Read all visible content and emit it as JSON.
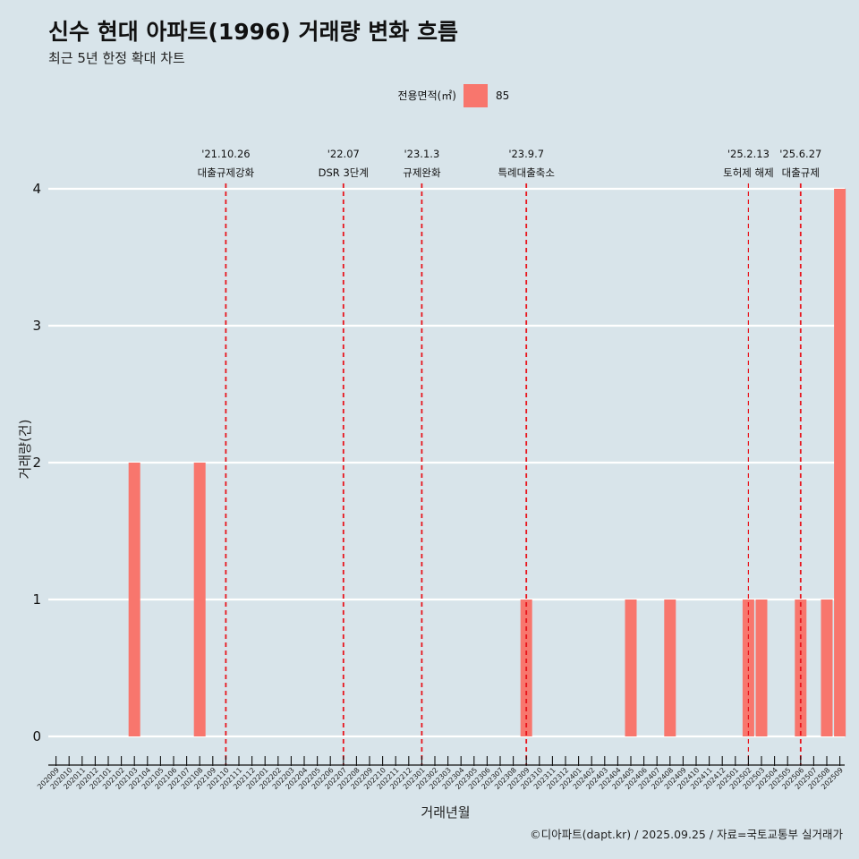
{
  "title": "신수 현대 아파트(1996) 거래량 변화 흐름",
  "subtitle": "최근 5년 한정 확대 차트",
  "caption": "©디아파트(dapt.kr) / 2025.09.25 / 자료=국토교통부 실거래가",
  "colors": {
    "background": "#d8e4ea",
    "bar": "#f8766d",
    "event_line": "#e8141c",
    "grid": "#ffffff"
  },
  "chart_data": {
    "type": "bar",
    "title": "신수 현대 아파트(1996) 거래량 변화 흐름",
    "xlabel": "거래년월",
    "ylabel": "거래량(건)",
    "ylim": [
      0,
      4
    ],
    "yticks": [
      0,
      1,
      2,
      3,
      4
    ],
    "legend": {
      "title": "전용면적(㎡)",
      "position": "top",
      "entries": [
        "85"
      ]
    },
    "categories": [
      "202009",
      "202010",
      "202011",
      "202012",
      "202101",
      "202102",
      "202103",
      "202104",
      "202105",
      "202106",
      "202107",
      "202108",
      "202109",
      "202110",
      "202111",
      "202112",
      "202201",
      "202202",
      "202203",
      "202204",
      "202205",
      "202206",
      "202207",
      "202208",
      "202209",
      "202210",
      "202211",
      "202212",
      "202301",
      "202302",
      "202303",
      "202304",
      "202305",
      "202306",
      "202307",
      "202308",
      "202309",
      "202310",
      "202311",
      "202312",
      "202401",
      "202402",
      "202403",
      "202404",
      "202405",
      "202406",
      "202407",
      "202408",
      "202409",
      "202410",
      "202411",
      "202412",
      "202501",
      "202502",
      "202503",
      "202504",
      "202505",
      "202506",
      "202507",
      "202508",
      "202509"
    ],
    "series": [
      {
        "name": "85",
        "values": [
          0,
          0,
          0,
          0,
          0,
          0,
          2,
          0,
          0,
          0,
          0,
          2,
          0,
          0,
          0,
          0,
          0,
          0,
          0,
          0,
          0,
          0,
          0,
          0,
          0,
          0,
          0,
          0,
          0,
          0,
          0,
          0,
          0,
          0,
          0,
          0,
          1,
          0,
          0,
          0,
          0,
          0,
          0,
          0,
          1,
          0,
          0,
          1,
          0,
          0,
          0,
          0,
          0,
          1,
          1,
          0,
          0,
          1,
          0,
          1,
          4
        ]
      }
    ],
    "events": [
      {
        "month": "202110",
        "date": "'21.10.26",
        "label": "대출규제강화"
      },
      {
        "month": "202207",
        "date": "'22.07",
        "label": "DSR 3단계"
      },
      {
        "month": "202301",
        "date": "'23.1.3",
        "label": "규제완화"
      },
      {
        "month": "202309",
        "date": "'23.9.7",
        "label": "특례대출축소"
      },
      {
        "month": "202502",
        "date": "'25.2.13",
        "label": "토허제 해제"
      },
      {
        "month": "202506",
        "date": "'25.6.27",
        "label": "대출규제"
      }
    ]
  }
}
